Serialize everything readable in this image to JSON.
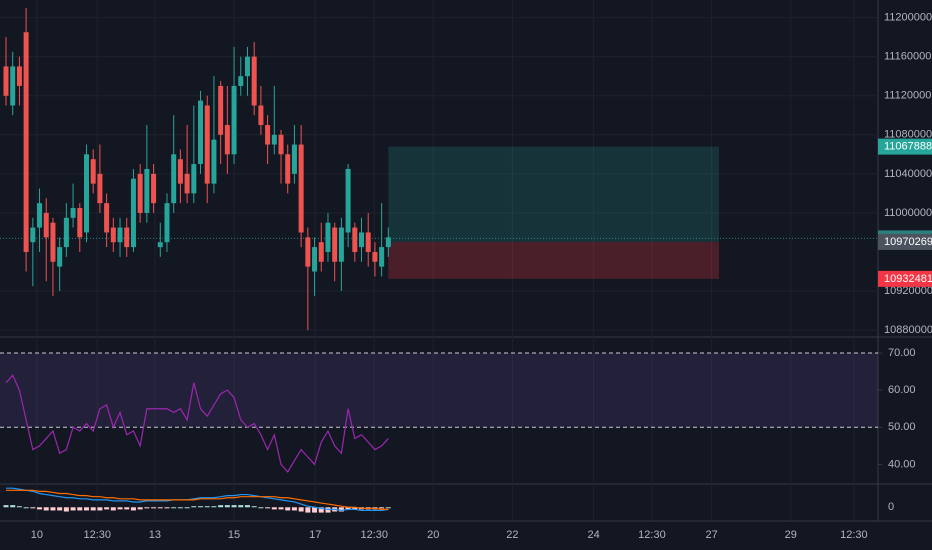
{
  "chart_data": [
    {
      "type": "candlestick",
      "up_color": "#26a69a",
      "down_color": "#ef5350",
      "open": [
        11150000,
        11110000,
        11150000,
        11185000,
        10970000,
        10985000,
        11000000,
        10990000,
        10945000,
        10965000,
        10995000,
        11005000,
        10980000,
        11055000,
        11040000,
        11010000,
        10985000,
        10970000,
        10985000,
        10965000,
        11040000,
        11000000,
        11040000,
        10965000,
        10970000,
        11010000,
        11055000,
        11040000,
        11020000,
        11050000,
        11110000,
        11030000,
        11130000,
        11090000,
        11060000,
        11130000,
        11140000,
        11160000,
        11110000,
        11090000,
        11070000,
        11080000,
        11060000,
        11040000,
        11070000,
        10975000,
        10940000,
        10970000,
        10960000,
        10985000,
        10950000,
        10980000,
        10985000,
        10965000,
        10980000,
        10960000,
        10945000,
        10965000
      ],
      "high": [
        11180000,
        11165000,
        11160000,
        11210000,
        10995000,
        11025000,
        11015000,
        10995000,
        10975000,
        11010000,
        11030000,
        11010000,
        11070000,
        11065000,
        11070000,
        11020000,
        10995000,
        10995000,
        10995000,
        11045000,
        11050000,
        11090000,
        11050000,
        10990000,
        11020000,
        11100000,
        11065000,
        11090000,
        11110000,
        11125000,
        11120000,
        11140000,
        11135000,
        11130000,
        11170000,
        11160000,
        11170000,
        11175000,
        11130000,
        11100000,
        11130000,
        11085000,
        11070000,
        11090000,
        11090000,
        10985000,
        10975000,
        10990000,
        11000000,
        10990000,
        10995000,
        11050000,
        10990000,
        10995000,
        11000000,
        10970000,
        11010000,
        10985000
      ],
      "low": [
        11110000,
        11100000,
        11110000,
        10940000,
        10925000,
        10960000,
        10930000,
        10915000,
        10920000,
        10955000,
        10985000,
        10960000,
        10970000,
        11020000,
        11000000,
        10965000,
        10960000,
        10955000,
        10955000,
        10960000,
        10990000,
        10990000,
        11000000,
        10955000,
        10960000,
        11000000,
        11010000,
        11010000,
        11010000,
        11040000,
        11010000,
        11020000,
        11050000,
        11040000,
        11050000,
        11120000,
        11120000,
        11100000,
        11080000,
        11050000,
        11060000,
        11030000,
        11020000,
        11030000,
        10965000,
        10880000,
        10915000,
        10940000,
        10950000,
        10930000,
        10920000,
        10965000,
        10950000,
        10950000,
        10945000,
        10935000,
        10935000,
        10955000
      ],
      "close": [
        11120000,
        11150000,
        11130000,
        10960000,
        10985000,
        11010000,
        10975000,
        10950000,
        10965000,
        10995000,
        11005000,
        10975000,
        11060000,
        11030000,
        11010000,
        10980000,
        10970000,
        10985000,
        10965000,
        11035000,
        11000000,
        11045000,
        11010000,
        10970000,
        11010000,
        11060000,
        11030000,
        11020000,
        11050000,
        11115000,
        11030000,
        11075000,
        11080000,
        11060000,
        11130000,
        11140000,
        11160000,
        11110000,
        11090000,
        11070000,
        11080000,
        11060000,
        11030000,
        11070000,
        10980000,
        10945000,
        10965000,
        10950000,
        10990000,
        10950000,
        10985000,
        11045000,
        10960000,
        10980000,
        10960000,
        10950000,
        10965000,
        10975000
      ],
      "ylim": [
        10875000,
        11218000
      ],
      "yticks": [
        11200000,
        11160000,
        11120000,
        11080000,
        11040000,
        11000000,
        10920000,
        10880000
      ],
      "xlim": [
        0,
        130
      ],
      "xticks": [
        {
          "value": 4.6,
          "label": "10"
        },
        {
          "value": 13.6,
          "label": "12:30"
        },
        {
          "value": 22.2,
          "label": "13"
        },
        {
          "value": 34,
          "label": "15"
        },
        {
          "value": 46.1,
          "label": "17"
        },
        {
          "value": 54.9,
          "label": "12:30"
        },
        {
          "value": 63.7,
          "label": "20"
        },
        {
          "value": 75.5,
          "label": "22"
        },
        {
          "value": 87.6,
          "label": "24"
        },
        {
          "value": 96.3,
          "label": "12:30"
        },
        {
          "value": 105.2,
          "label": "27"
        },
        {
          "value": 117,
          "label": "29"
        },
        {
          "value": 126.4,
          "label": "12:30"
        }
      ],
      "last_price": 10973924,
      "last_price_color": "#2a7f7d",
      "position": {
        "start": 57,
        "end": 106.3,
        "target": 11067888,
        "entry": 10970269,
        "stop": 10932481,
        "target_color": "#26a69a",
        "entry_color": "#4c525e",
        "stop_color": "#f23645"
      }
    },
    {
      "type": "line",
      "color": "#9c27b0",
      "values": [
        62,
        64,
        60,
        52,
        44,
        45,
        47,
        49,
        43,
        44,
        50,
        49,
        51,
        49,
        55,
        56,
        50,
        54,
        48,
        49,
        45,
        55,
        55,
        55,
        55,
        54,
        55,
        52,
        62,
        55,
        53,
        56,
        59,
        60,
        58,
        52,
        50,
        51,
        48,
        44,
        48,
        40,
        38,
        41,
        44,
        42,
        40,
        46,
        49,
        45,
        43,
        55,
        47,
        48,
        46,
        44,
        45,
        47
      ],
      "ylim": [
        35,
        73.5
      ],
      "yticks": [
        {
          "value": 70,
          "label": "70.00"
        },
        {
          "value": 60,
          "label": "60.00"
        },
        {
          "value": 50,
          "label": "50.00"
        },
        {
          "value": 40,
          "label": "40.00"
        }
      ],
      "band": [
        50,
        70
      ],
      "band_color": "#7e57c2"
    },
    {
      "type": "macd",
      "series": [
        {
          "color": "#2196f3",
          "values": [
            18,
            18,
            17,
            16,
            15,
            13,
            12,
            11,
            10,
            9,
            9,
            8,
            8,
            7,
            7,
            7,
            6,
            6,
            6,
            5,
            5,
            6,
            6,
            6,
            6,
            7,
            7,
            7,
            8,
            9,
            9,
            9,
            10,
            11,
            11,
            12,
            12,
            11,
            10,
            9,
            8,
            7,
            6,
            5,
            3,
            1,
            0,
            -1,
            -2,
            -2,
            -3,
            -2,
            -2,
            -3,
            -3,
            -3,
            -3,
            -2
          ]
        },
        {
          "color": "#ff6d00",
          "values": [
            16,
            16,
            16,
            16,
            16,
            15,
            15,
            14,
            13,
            13,
            12,
            11,
            11,
            10,
            10,
            9,
            9,
            8,
            8,
            8,
            7,
            7,
            7,
            7,
            7,
            7,
            7,
            7,
            7,
            8,
            8,
            8,
            8,
            9,
            9,
            10,
            10,
            10,
            10,
            10,
            10,
            9,
            9,
            8,
            7,
            6,
            5,
            4,
            3,
            2,
            1,
            0,
            0,
            -1,
            -1,
            -1,
            -2,
            -2
          ]
        }
      ],
      "histogram": [
        2,
        2,
        1,
        0,
        -1,
        -2,
        -3,
        -3,
        -3,
        -4,
        -3,
        -3,
        -3,
        -3,
        -3,
        -2,
        -3,
        -2,
        -2,
        -3,
        -2,
        -1,
        -1,
        -1,
        -1,
        0,
        0,
        0,
        1,
        1,
        1,
        1,
        2,
        2,
        2,
        2,
        2,
        1,
        0,
        -1,
        -2,
        -2,
        -3,
        -3,
        -4,
        -5,
        -5,
        -5,
        -5,
        -4,
        -4,
        -2,
        -2,
        -2,
        -2,
        -2,
        -1,
        0
      ],
      "up_color": "#b2dfdb",
      "down_color": "#ffcdd2",
      "ylim": [
        -12,
        21
      ],
      "yticks": [
        0
      ]
    }
  ]
}
